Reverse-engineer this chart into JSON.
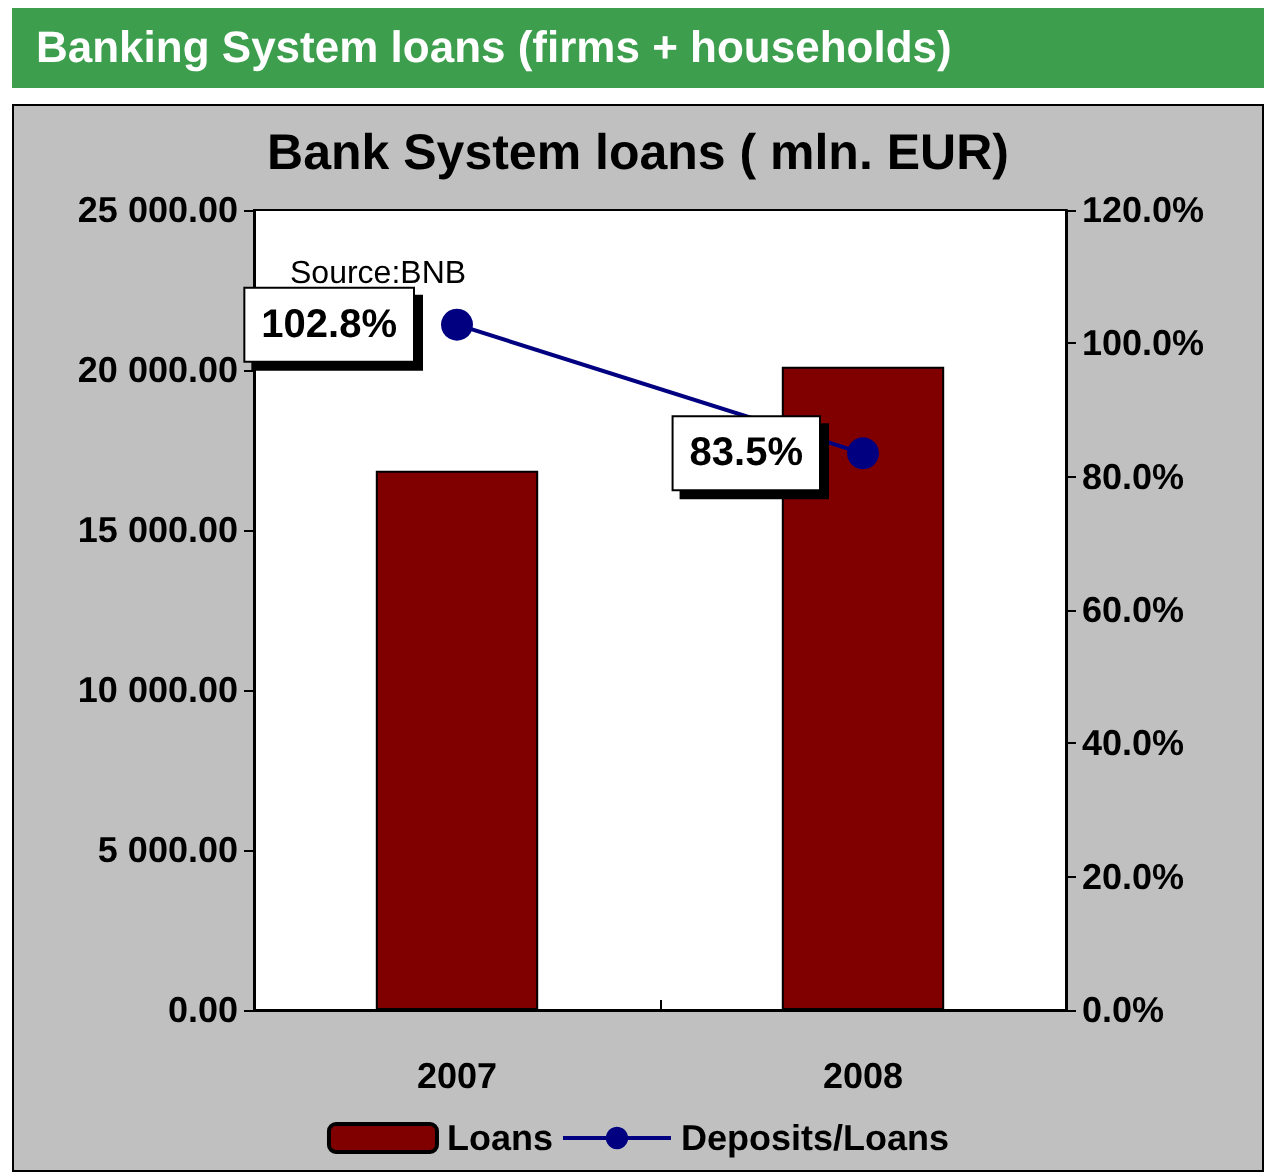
{
  "chart_data": {
    "type": "bar",
    "title": "Banking System loans (firms + households)",
    "subtitle": "Bank System loans ( mln. EUR)",
    "annotations": [
      "Source:BNB"
    ],
    "categories": [
      "2007",
      "2008"
    ],
    "series": [
      {
        "name": "Loans",
        "color": "#800000",
        "values": [
          16850,
          20100
        ]
      },
      {
        "name": "Deposits/Loans",
        "type": "line",
        "axis": "y2",
        "color": "#000080",
        "values": [
          102.8,
          83.5
        ],
        "value_labels": [
          "102.8%",
          "83.5%"
        ]
      }
    ],
    "ylim": [
      0,
      25000
    ],
    "yticks": [
      {
        "value": 0,
        "label": "0.00"
      },
      {
        "value": 5000,
        "label": "5 000.00"
      },
      {
        "value": 10000,
        "label": "10 000.00"
      },
      {
        "value": 15000,
        "label": "15 000.00"
      },
      {
        "value": 20000,
        "label": "20 000.00"
      },
      {
        "value": 25000,
        "label": "25 000.00"
      }
    ],
    "y2lim": [
      0,
      120
    ],
    "y2ticks": [
      {
        "value": 0,
        "label": "0.0%"
      },
      {
        "value": 20,
        "label": "20.0%"
      },
      {
        "value": 40,
        "label": "40.0%"
      },
      {
        "value": 60,
        "label": "60.0%"
      },
      {
        "value": 80,
        "label": "80.0%"
      },
      {
        "value": 100,
        "label": "100.0%"
      },
      {
        "value": 120,
        "label": "120.0%"
      }
    ],
    "grid": false,
    "legend": "bottom",
    "marker": "circle",
    "line_style": "solid"
  }
}
